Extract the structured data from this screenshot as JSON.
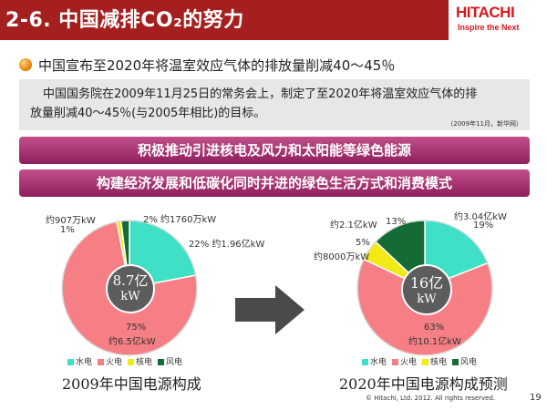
{
  "header": {
    "title": "2-6. 中国减排CO₂的努力",
    "logo": "HITACHI",
    "logo_sub": "Inspire the Next"
  },
  "bullet": {
    "text": "中国宣布至2020年将温室效应气体的排放量削减40～45％"
  },
  "notice": {
    "line1": "中国国务院在2009年11月25日的常务会上，制定了至2020年将温室效应气体的排",
    "line2": "放量削减40～45％(与2005年相比)的目标。",
    "source": "（2009年11月，新华网）"
  },
  "banners": [
    "积极推动引进核电及风力和太阳能等绿色能源",
    "构建经济发展和低碳化同时并进的绿色生活方式和消费模式"
  ],
  "colors": {
    "hydro": "#3fe0c6",
    "thermal": "#f57f84",
    "nuclear": "#f2ea15",
    "wind": "#146b36",
    "header": "#a51f1f"
  },
  "legend": {
    "hydro": "水电",
    "thermal": "火电",
    "nuclear": "核电",
    "wind": "风电"
  },
  "chart_2009": {
    "center_line1": "8.7亿",
    "center_line2": "kW",
    "caption": "2009年中国电源构成",
    "labels": {
      "wind_amt": "约907万kW",
      "nuclear_pct": "1%",
      "wind_pct": "2% 约1760万kW",
      "hydro": "22% 约1.96亿kW",
      "thermal_pct": "75%",
      "thermal_amt": "约6.5亿kW"
    }
  },
  "chart_2020": {
    "center_line1": "16亿",
    "center_line2": "kW",
    "caption": "2020年中国电源构成预测",
    "labels": {
      "hydro_amt": "约3.04亿kW",
      "hydro_pct": "19%",
      "wind_amt": "约2.1亿kW",
      "wind_pct": "13%",
      "nuclear_pct": "5%",
      "nuclear_amt": "约8000万kW",
      "thermal_pct": "63%",
      "thermal_amt": "约10.1亿kW"
    }
  },
  "chart_data": [
    {
      "type": "pie",
      "title": "2009年中国电源构成",
      "categories": [
        "水电",
        "火电",
        "核电",
        "风电"
      ],
      "values": [
        22,
        75,
        1,
        2
      ]
    },
    {
      "type": "pie",
      "title": "2020年中国电源构成预测",
      "categories": [
        "水电",
        "火电",
        "核电",
        "风电"
      ],
      "values": [
        19,
        63,
        5,
        13
      ]
    }
  ],
  "footer": {
    "copyright": "© Hitachi, Ltd. 2012. All rights reserved.",
    "page": "19"
  }
}
